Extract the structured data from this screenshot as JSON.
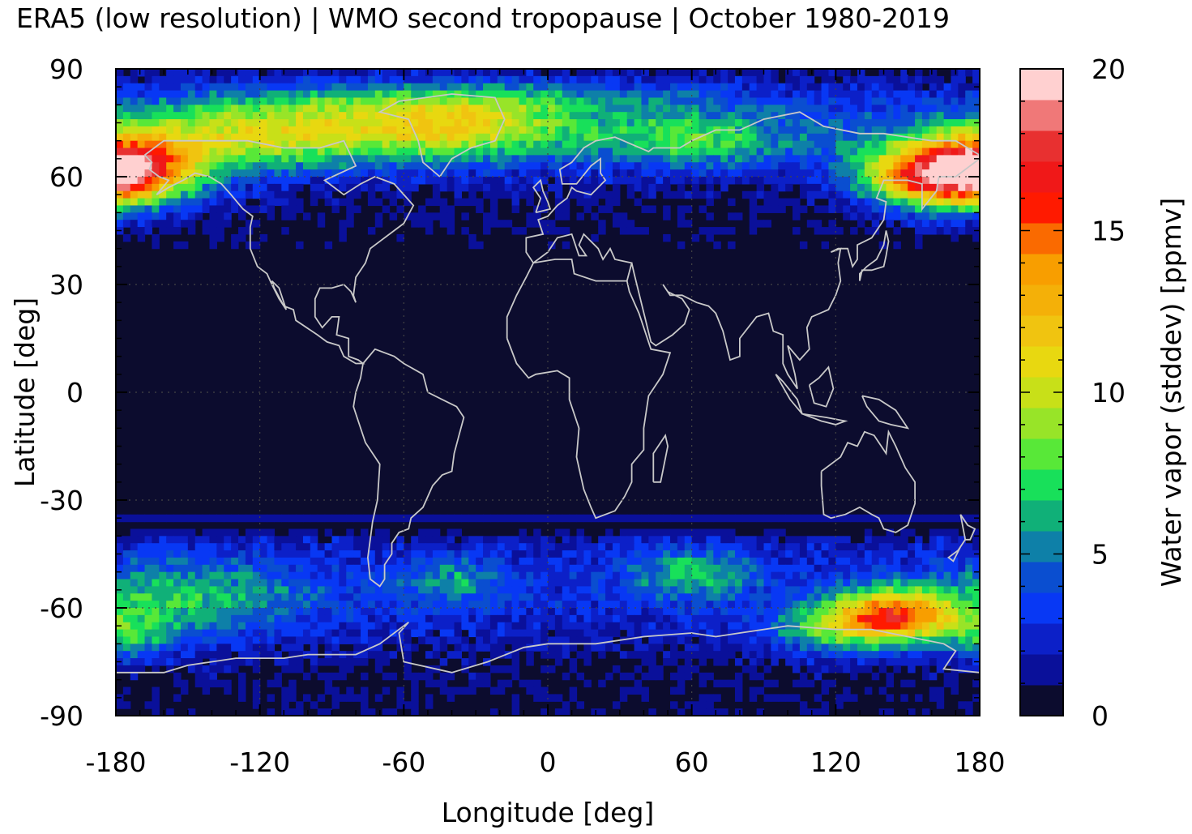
{
  "chart_data": {
    "type": "heatmap",
    "title": "ERA5 (low resolution) | WMO second tropopause | October 1980-2019",
    "xlabel": "Longitude [deg]",
    "ylabel": "Latitude [deg]",
    "colorbar_label": "Water vapor (stddev) [ppmv]",
    "xlim": [
      -180,
      180
    ],
    "ylim": [
      -90,
      90
    ],
    "x_ticks": [
      "-180",
      "-120",
      "-60",
      "0",
      "60",
      "120",
      "180"
    ],
    "y_ticks": [
      "90",
      "60",
      "30",
      "0",
      "-30",
      "-60",
      "-90"
    ],
    "colorbar_range": [
      0,
      20
    ],
    "colorbar_ticks": [
      "20",
      "15",
      "10",
      "5",
      "0"
    ],
    "colorbar_levels": [
      "#0c0c2e",
      "#0a109a",
      "#0c20c8",
      "#0838f4",
      "#0a4ed0",
      "#0e80a8",
      "#10b078",
      "#18e05a",
      "#58e838",
      "#98e428",
      "#c8e018",
      "#e8d810",
      "#f0c410",
      "#f4b008",
      "#f89e00",
      "#fa6a00",
      "#ff1a00",
      "#f01818",
      "#e83030",
      "#f07878",
      "#ffd0d0"
    ],
    "background_color": "#0c0c2e",
    "coastline_color": "#c8c8c8",
    "grid": "dotted",
    "features": [
      {
        "lat": [
          45,
          85
        ],
        "lon": [
          -180,
          180
        ],
        "level": "high variability band, peaks ~17-20 near 60N 170E-170W"
      },
      {
        "lat": [
          -85,
          -35
        ],
        "lon": [
          -180,
          180
        ],
        "level": "moderate variability band, peak ~17 near 62S 145E"
      },
      {
        "lat": [
          -35,
          35
        ],
        "lon": [
          -180,
          180
        ],
        "level": "low variability ~0-1"
      }
    ]
  }
}
